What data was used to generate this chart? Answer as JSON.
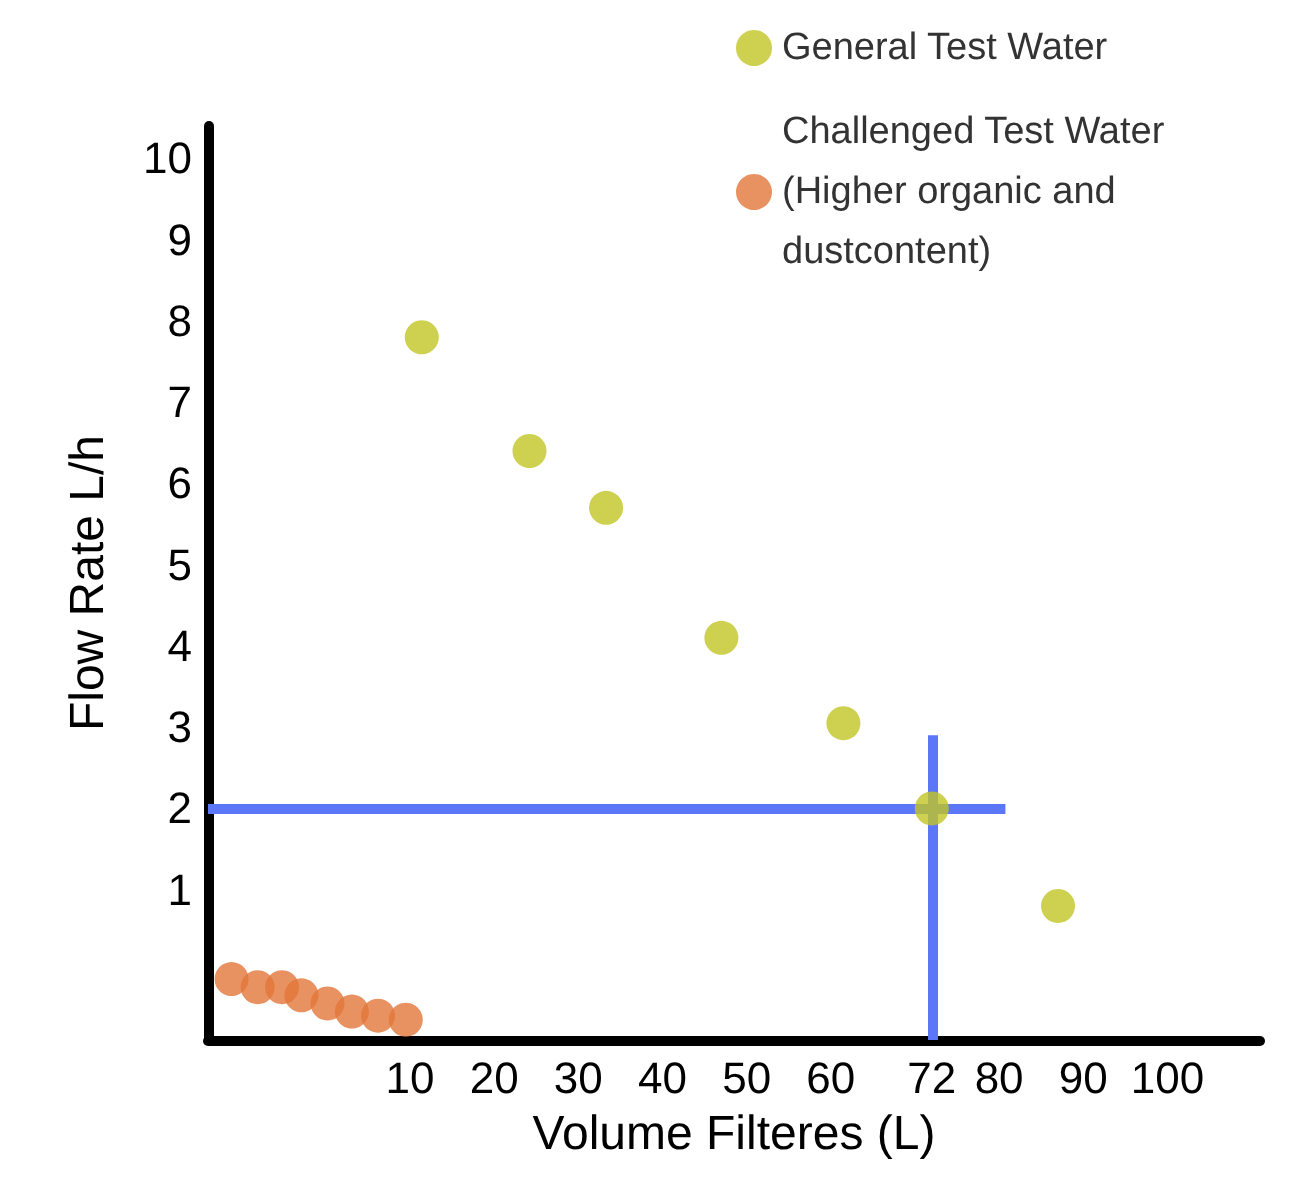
{
  "chart_data": {
    "type": "scatter",
    "xlabel": "Volume Filteres (L)",
    "ylabel": "Flow Rate L/h",
    "series": [
      {
        "name": "General Test Water",
        "color": "#c0c523",
        "x": [
          11.4,
          24.2,
          33.3,
          47,
          61.5,
          72,
          87
        ],
        "values": [
          7.8,
          6.4,
          5.7,
          4.1,
          3.05,
          2,
          0.8
        ]
      },
      {
        "name": "Challenged Test Water (Higher organic and dustcontent)",
        "color": "#e2773a",
        "x": [
          -11.2,
          -8.1,
          -5.2,
          -2.9,
          0.2,
          3.1,
          6.2,
          9.5
        ],
        "values": [
          -0.1,
          -0.2,
          -0.2,
          -0.3,
          -0.4,
          -0.5,
          -0.55,
          -0.6
        ]
      }
    ],
    "xlim": [
      -14,
      111
    ],
    "xticks": [
      10,
      20,
      30,
      40,
      50,
      60,
      72,
      80,
      90,
      100
    ],
    "ylim": [
      -0.85,
      10.4
    ],
    "yticks": [
      1,
      2,
      3,
      4,
      5,
      6,
      7,
      8,
      9,
      10
    ],
    "ref_lines": [
      {
        "axis": "y",
        "value": 2,
        "color": "#5b76f7"
      },
      {
        "axis": "x",
        "value": 72,
        "color": "#5b76f7"
      }
    ],
    "grid": false,
    "legend": "top right",
    "marker": "circle"
  }
}
